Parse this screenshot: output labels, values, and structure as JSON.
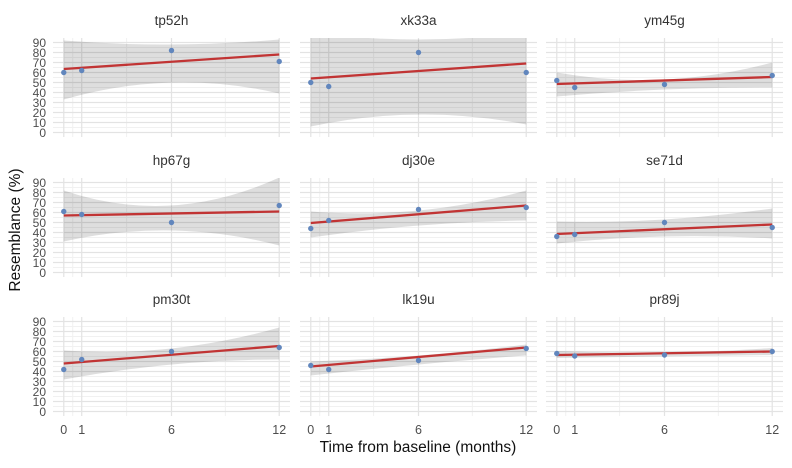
{
  "colors": {
    "point": "#6186bd",
    "regression_line": "#c13434",
    "confidence_band": "rgba(0,0,0,0.13)",
    "grid_major": "#e3e3e3",
    "grid_minor": "#f1f1f1",
    "tick_text": "#4d4d4d",
    "strip_text": "#333333",
    "axis_title_text": "#111111",
    "background": "#ffffff"
  },
  "chart_data": {
    "type": "scatter",
    "title": "",
    "xlabel": "Time from baseline (months)",
    "ylabel": "Resemblance (%)",
    "x_ticks": [
      0,
      1,
      6,
      12
    ],
    "y_ticks": [
      0,
      10,
      20,
      30,
      40,
      50,
      60,
      70,
      80,
      90
    ],
    "x_minor_gridlines": [
      0.5,
      3.5,
      9
    ],
    "y_minor_gridlines": [
      5,
      15,
      25,
      35,
      45,
      55,
      65,
      75,
      85
    ],
    "xlim": [
      -0.6,
      12.6
    ],
    "ylim": [
      -4.5,
      94.5
    ],
    "grid": "on",
    "legend": "none",
    "facet_grid": [
      3,
      3
    ],
    "facets": [
      {
        "label": "tp52h",
        "points": {
          "x": [
            0,
            1,
            6,
            12
          ],
          "y": [
            60,
            62,
            82,
            71
          ]
        },
        "fit": {
          "x": [
            0,
            12
          ],
          "y": [
            63.5,
            78
          ]
        },
        "band": {
          "x": [
            0,
            6,
            12
          ],
          "lo": [
            33,
            50,
            39
          ],
          "hi": [
            92,
            88,
            93
          ]
        }
      },
      {
        "label": "xk33a",
        "points": {
          "x": [
            0,
            1,
            6,
            12
          ],
          "y": [
            50,
            46,
            80,
            60
          ]
        },
        "fit": {
          "x": [
            0,
            12
          ],
          "y": [
            54,
            69
          ]
        },
        "band": {
          "x": [
            0,
            6,
            12
          ],
          "lo": [
            6,
            18,
            8
          ],
          "hi": [
            100,
            93,
            100
          ]
        }
      },
      {
        "label": "ym45g",
        "points": {
          "x": [
            0,
            1,
            6,
            12
          ],
          "y": [
            52,
            45,
            48,
            57
          ]
        },
        "fit": {
          "x": [
            0,
            12
          ],
          "y": [
            48.5,
            55.5
          ]
        },
        "band": {
          "x": [
            0,
            6,
            12
          ],
          "lo": [
            36,
            43,
            45
          ],
          "hi": [
            60,
            53,
            70
          ]
        }
      },
      {
        "label": "hp67g",
        "points": {
          "x": [
            0,
            1,
            6,
            12
          ],
          "y": [
            61,
            58,
            50,
            67
          ]
        },
        "fit": {
          "x": [
            0,
            12
          ],
          "y": [
            57,
            61
          ]
        },
        "band": {
          "x": [
            0,
            6,
            12
          ],
          "lo": [
            31,
            42,
            27
          ],
          "hi": [
            82,
            67,
            95
          ]
        }
      },
      {
        "label": "dj30e",
        "points": {
          "x": [
            0,
            1,
            6,
            12
          ],
          "y": [
            44,
            52,
            63,
            65
          ]
        },
        "fit": {
          "x": [
            0,
            12
          ],
          "y": [
            49.5,
            67
          ]
        },
        "band": {
          "x": [
            0,
            6,
            12
          ],
          "lo": [
            35,
            47,
            52
          ],
          "hi": [
            61,
            62,
            82
          ]
        }
      },
      {
        "label": "se71d",
        "points": {
          "x": [
            0,
            1,
            6,
            12
          ],
          "y": [
            36,
            38,
            50,
            45
          ]
        },
        "fit": {
          "x": [
            0,
            12
          ],
          "y": [
            38.5,
            48
          ]
        },
        "band": {
          "x": [
            0,
            6,
            12
          ],
          "lo": [
            29,
            36,
            34
          ],
          "hi": [
            51,
            53,
            64
          ]
        }
      },
      {
        "label": "pm30t",
        "points": {
          "x": [
            0,
            1,
            6,
            12
          ],
          "y": [
            42,
            52,
            60,
            64
          ]
        },
        "fit": {
          "x": [
            0,
            12
          ],
          "y": [
            48,
            65.5
          ]
        },
        "band": {
          "x": [
            0,
            6,
            12
          ],
          "lo": [
            32,
            47,
            52
          ],
          "hi": [
            61,
            63,
            84
          ]
        }
      },
      {
        "label": "lk19u",
        "points": {
          "x": [
            0,
            1,
            6,
            12
          ],
          "y": [
            46,
            42,
            51,
            63
          ]
        },
        "fit": {
          "x": [
            0,
            12
          ],
          "y": [
            45,
            64
          ]
        },
        "band": {
          "x": [
            0,
            6,
            12
          ],
          "lo": [
            36,
            47,
            56
          ],
          "hi": [
            50,
            56,
            67
          ]
        }
      },
      {
        "label": "pr89j",
        "points": {
          "x": [
            0,
            1,
            6,
            12
          ],
          "y": [
            58,
            55.5,
            56.5,
            60
          ]
        },
        "fit": {
          "x": [
            0,
            12
          ],
          "y": [
            56.5,
            60
          ]
        },
        "band": {
          "x": [
            0,
            6,
            12
          ],
          "lo": [
            53.5,
            55,
            56.5
          ],
          "hi": [
            60.5,
            59,
            63.5
          ]
        }
      }
    ]
  }
}
